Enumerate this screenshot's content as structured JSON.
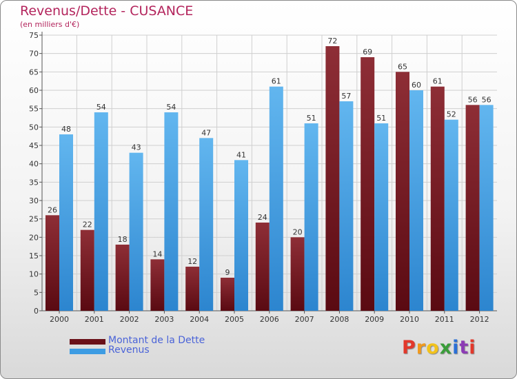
{
  "chart_data": {
    "type": "bar",
    "title": "Revenus/Dette - CUSANCE",
    "subtitle": "(en milliers d'€)",
    "categories": [
      "2000",
      "2001",
      "2002",
      "2003",
      "2004",
      "2005",
      "2006",
      "2007",
      "2008",
      "2009",
      "2010",
      "2011",
      "2012"
    ],
    "series": [
      {
        "name": "Montant de la Dette",
        "color": "#7b1a24",
        "values": [
          26,
          22,
          18,
          14,
          12,
          9,
          24,
          20,
          72,
          69,
          65,
          61,
          56
        ]
      },
      {
        "name": "Revenus",
        "color": "#3d9ce3",
        "values": [
          48,
          54,
          43,
          54,
          47,
          41,
          61,
          51,
          57,
          51,
          60,
          52,
          56
        ]
      }
    ],
    "ylim": [
      0,
      75
    ],
    "yticks": [
      0,
      5,
      10,
      15,
      20,
      25,
      30,
      35,
      40,
      45,
      50,
      55,
      60,
      65,
      70,
      75
    ],
    "grid": true,
    "legend_position": "bottom-left",
    "data_labels": true
  },
  "logo": {
    "text": "Proxiti"
  }
}
